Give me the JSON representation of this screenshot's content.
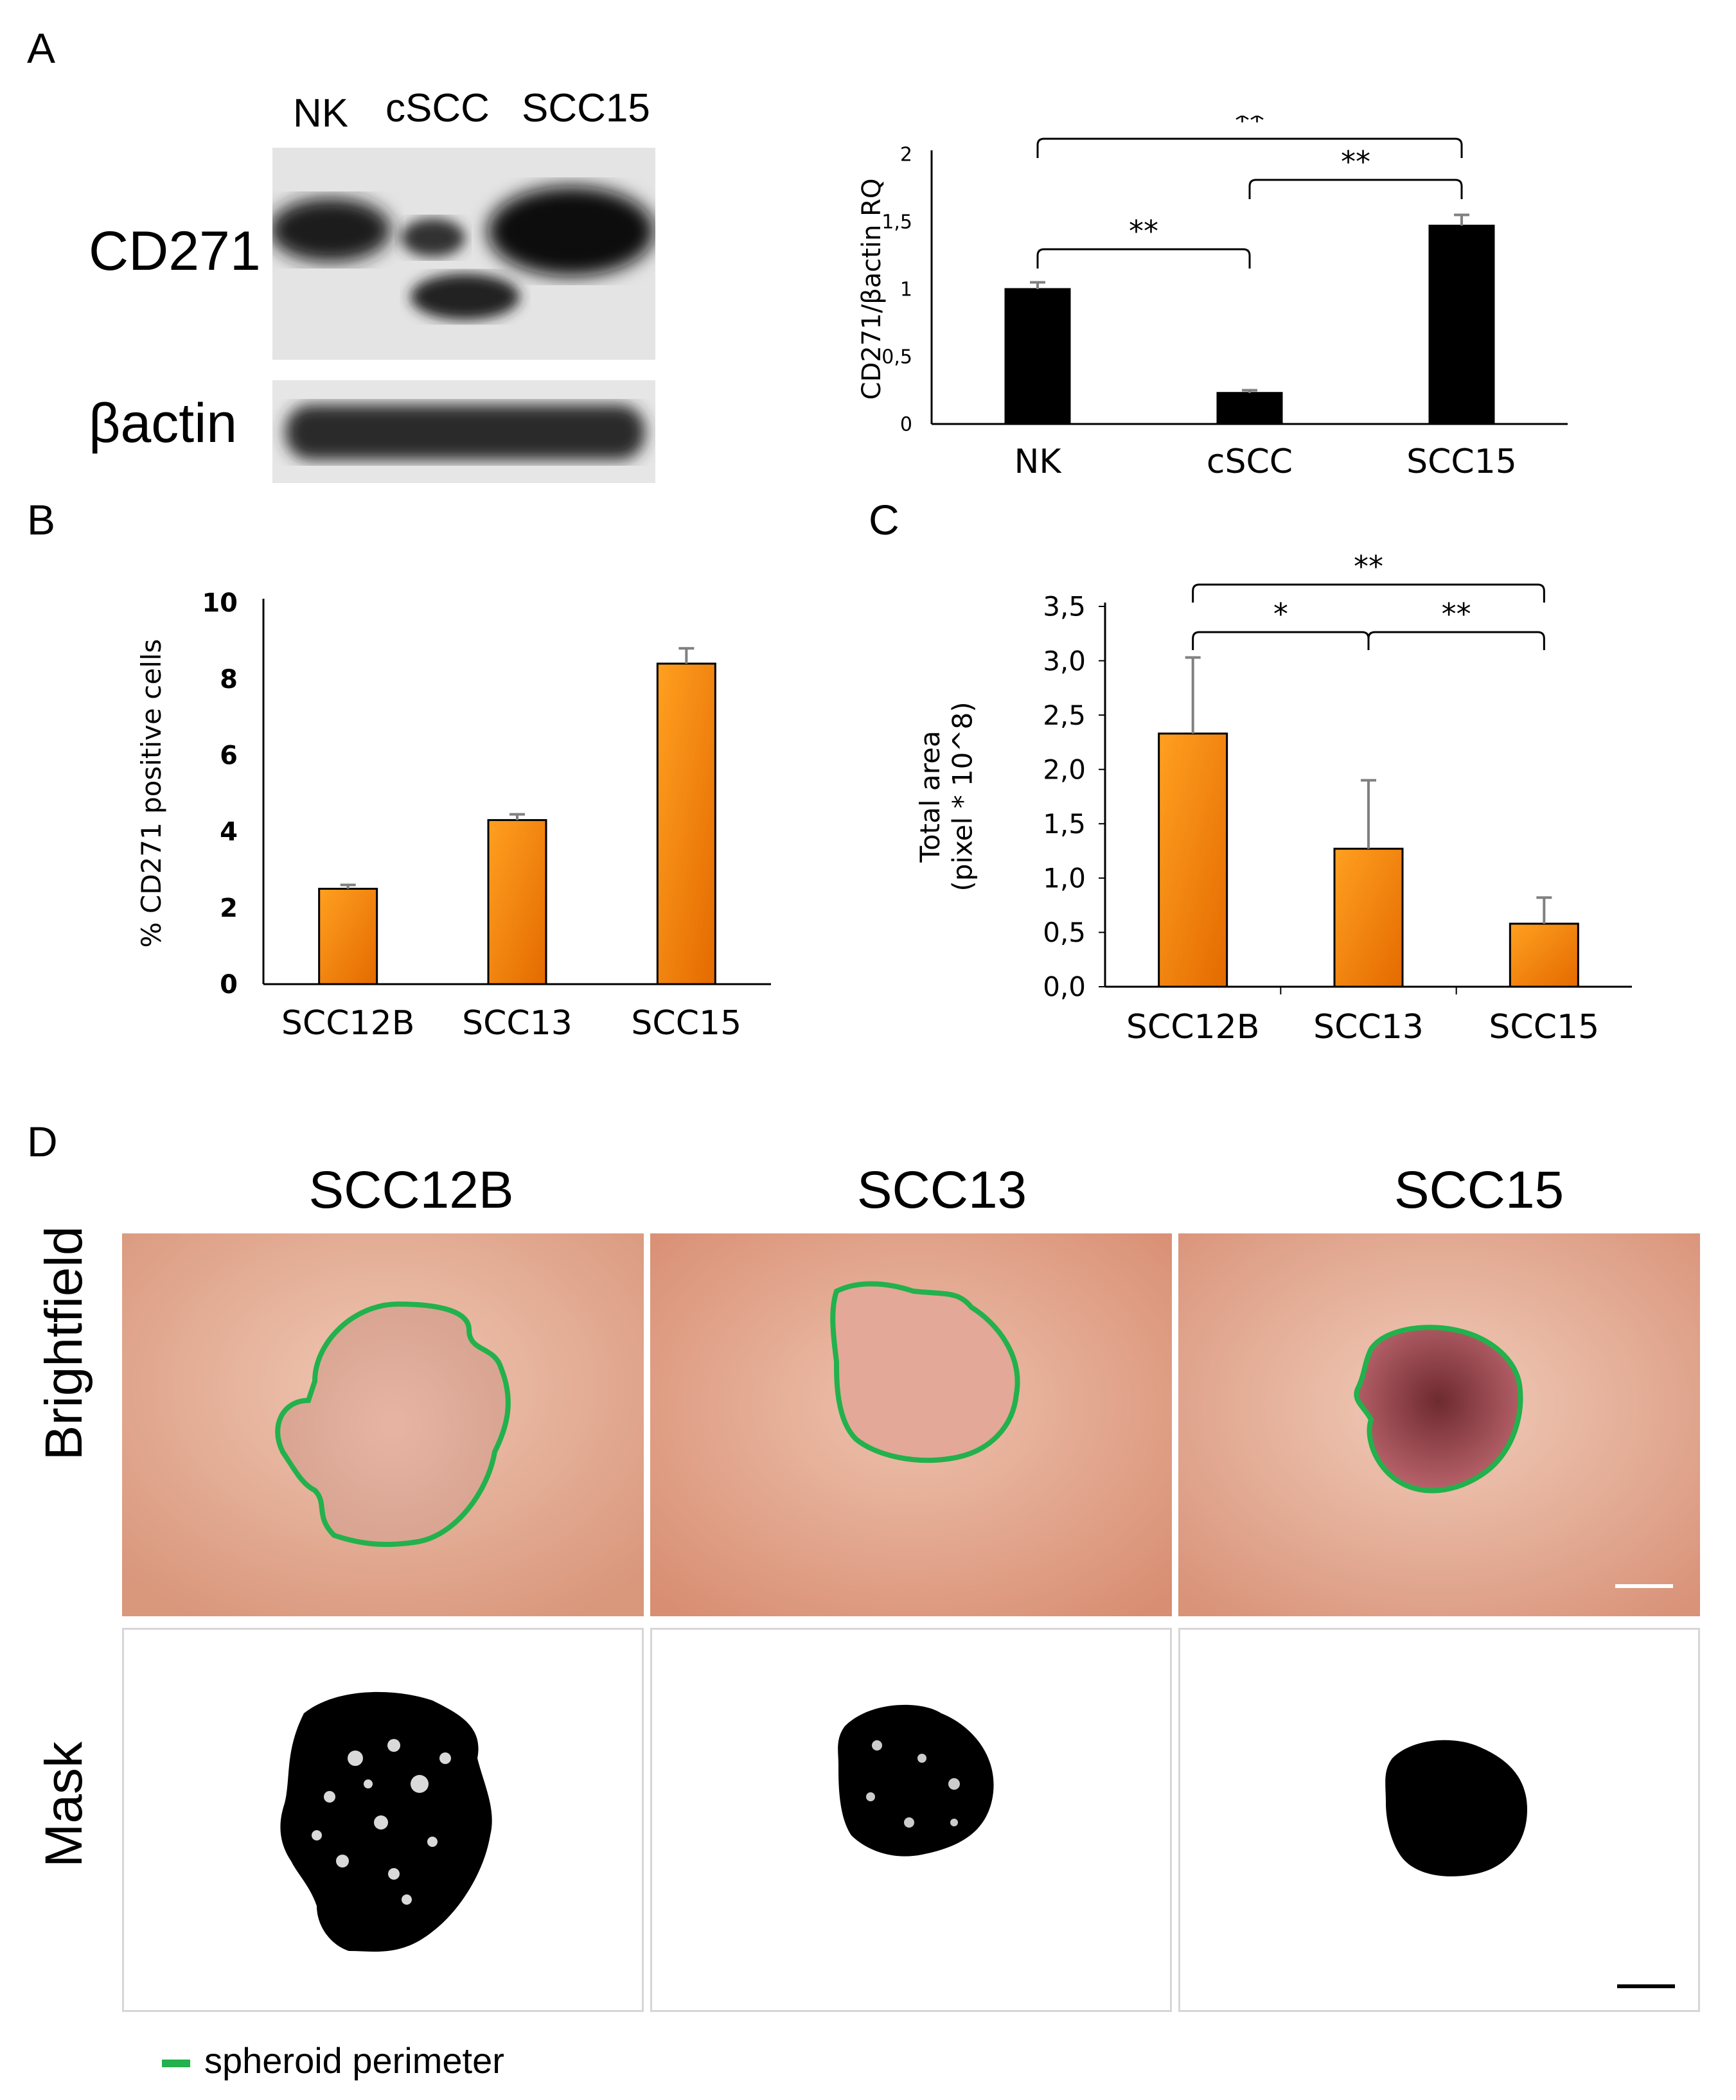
{
  "panel_labels": {
    "a": "A",
    "b": "B",
    "c": "C",
    "d": "D"
  },
  "western_blot": {
    "lanes": [
      "NK",
      "cSCC",
      "SCC15"
    ],
    "rows": [
      "CD271",
      "βactin"
    ]
  },
  "chart_data": [
    {
      "type": "bar",
      "panel": "A",
      "categories": [
        "NK",
        "cSCC",
        "SCC15"
      ],
      "values": [
        1.0,
        0.23,
        1.47
      ],
      "errors": [
        0.05,
        0.02,
        0.08
      ],
      "ylabel": "CD271/βactin RQ",
      "ylim": [
        0,
        2
      ],
      "yticks": [
        "0",
        "0,5",
        "1",
        "1,5",
        "2"
      ],
      "bar_color": "#000000",
      "significance": [
        {
          "from": "NK",
          "to": "SCC15",
          "label": "**"
        },
        {
          "from": "cSCC",
          "to": "SCC15",
          "label": "**"
        },
        {
          "from": "NK",
          "to": "cSCC",
          "label": "**"
        }
      ]
    },
    {
      "type": "bar",
      "panel": "B",
      "categories": [
        "SCC12B",
        "SCC13",
        "SCC15"
      ],
      "values": [
        2.5,
        4.3,
        8.4
      ],
      "errors": [
        0.1,
        0.15,
        0.4
      ],
      "ylabel": "% CD271  positive cells",
      "ylim": [
        0,
        10
      ],
      "yticks": [
        "0",
        "2",
        "4",
        "6",
        "8",
        "10"
      ],
      "bar_color": "#ff8c00"
    },
    {
      "type": "bar",
      "panel": "C",
      "categories": [
        "SCC12B",
        "SCC13",
        "SCC15"
      ],
      "values": [
        2.33,
        1.27,
        0.58
      ],
      "errors": [
        0.7,
        0.63,
        0.24
      ],
      "ylabel_lines": [
        "Total area",
        "(pixel * 10^8)"
      ],
      "ylim": [
        0,
        3.5
      ],
      "yticks": [
        "0,0",
        "0,5",
        "1,0",
        "1,5",
        "2,0",
        "2,5",
        "3,0",
        "3,5"
      ],
      "bar_color": "#ff8c00",
      "significance": [
        {
          "from": "SCC12B",
          "to": "SCC15",
          "label": "**"
        },
        {
          "from": "SCC12B",
          "to": "SCC13",
          "label": "*"
        },
        {
          "from": "SCC13",
          "to": "SCC15",
          "label": "**"
        }
      ]
    }
  ],
  "panel_d": {
    "columns": [
      "SCC12B",
      "SCC13",
      "SCC15"
    ],
    "rows": [
      "Brightfield",
      "Mask"
    ],
    "legend": "spheroid perimeter",
    "perimeter_color": "#22b14c"
  }
}
